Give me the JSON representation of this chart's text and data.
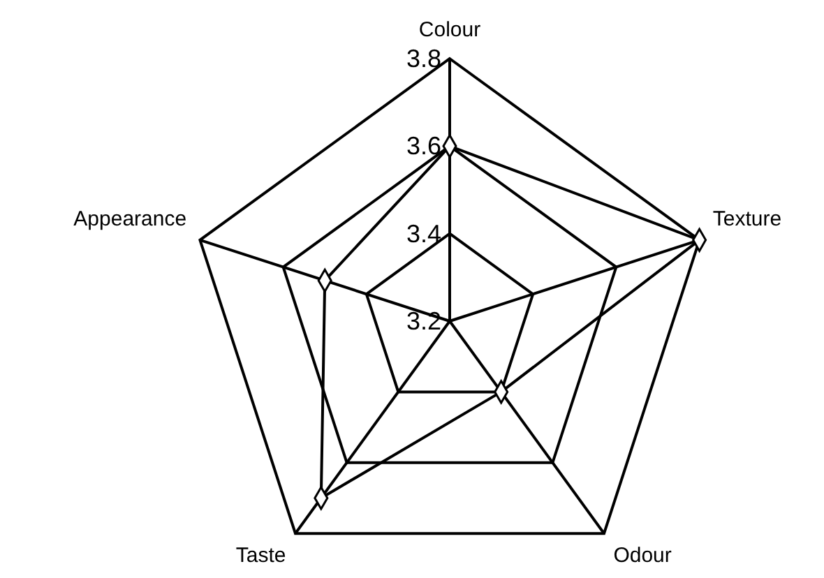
{
  "chart_data": {
    "type": "radar",
    "categories": [
      "Colour",
      "Texture",
      "Odour",
      "Taste",
      "Appearance"
    ],
    "series": [
      {
        "color": "#000000",
        "values": [
          3.6,
          3.8,
          3.4,
          3.7,
          3.5
        ]
      }
    ],
    "ylim": [
      3.2,
      3.8
    ],
    "yticks": [
      3.2,
      3.4,
      3.6,
      3.8
    ],
    "grid": true,
    "marker": "diamond",
    "legend": false
  }
}
